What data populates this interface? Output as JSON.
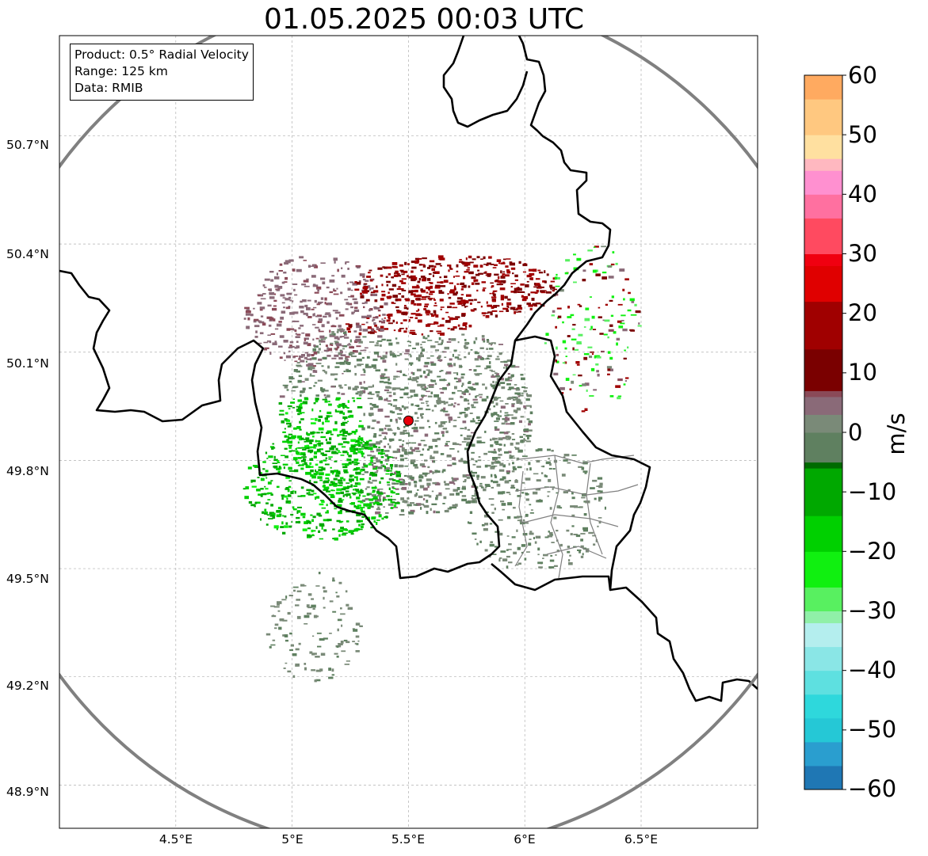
{
  "title": "01.05.2025 00:03 UTC",
  "info_box": {
    "product": "Product: 0.5° Radial Velocity",
    "range": "Range: 125 km",
    "data": "Data: RMIB"
  },
  "map": {
    "lat_ticks": [
      "50.7°N",
      "50.4°N",
      "50.1°N",
      "49.8°N",
      "49.5°N",
      "49.2°N",
      "48.9°N"
    ],
    "lon_ticks": [
      "4.5°E",
      "5°E",
      "5.5°E",
      "6°E",
      "6.5°E"
    ],
    "radar_site": {
      "lon": 5.5,
      "lat": 49.91,
      "color": "#e8000b"
    },
    "range_ring_color": "#808080",
    "border_color": "#000000",
    "admin_border_color": "#808080",
    "grid": true
  },
  "colorbar": {
    "label": "m/s",
    "ticks": [
      "60",
      "50",
      "40",
      "30",
      "20",
      "10",
      "0",
      "−10",
      "−20",
      "−30",
      "−40",
      "−50",
      "−60"
    ],
    "min": -60,
    "max": 60,
    "stops": [
      {
        "v": -60,
        "c": "#1f77b4"
      },
      {
        "v": -56,
        "c": "#2a9ecf"
      },
      {
        "v": -52,
        "c": "#25c8d6"
      },
      {
        "v": -48,
        "c": "#2ed8dc"
      },
      {
        "v": -44,
        "c": "#5ee0e0"
      },
      {
        "v": -40,
        "c": "#8ae6e6"
      },
      {
        "v": -36,
        "c": "#b4eeee"
      },
      {
        "v": -32,
        "c": "#90f0a8"
      },
      {
        "v": -30,
        "c": "#58f060"
      },
      {
        "v": -26,
        "c": "#10f010"
      },
      {
        "v": -20,
        "c": "#00d000"
      },
      {
        "v": -14,
        "c": "#00a800"
      },
      {
        "v": -6,
        "c": "#006a00"
      },
      {
        "v": -5,
        "c": "#5f8060"
      },
      {
        "v": 0,
        "c": "#7a8a78"
      },
      {
        "v": 3,
        "c": "#8a6a78"
      },
      {
        "v": 6,
        "c": "#8a4a58"
      },
      {
        "v": 7,
        "c": "#7a0000"
      },
      {
        "v": 14,
        "c": "#a00000"
      },
      {
        "v": 22,
        "c": "#e00000"
      },
      {
        "v": 28,
        "c": "#f00010"
      },
      {
        "v": 30,
        "c": "#ff4a60"
      },
      {
        "v": 36,
        "c": "#ff70a0"
      },
      {
        "v": 40,
        "c": "#ff90d0"
      },
      {
        "v": 44,
        "c": "#ffb8c0"
      },
      {
        "v": 46,
        "c": "#ffe0a0"
      },
      {
        "v": 50,
        "c": "#ffc880"
      },
      {
        "v": 56,
        "c": "#ffaa60"
      },
      {
        "v": 60,
        "c": "#ff9850"
      }
    ]
  }
}
